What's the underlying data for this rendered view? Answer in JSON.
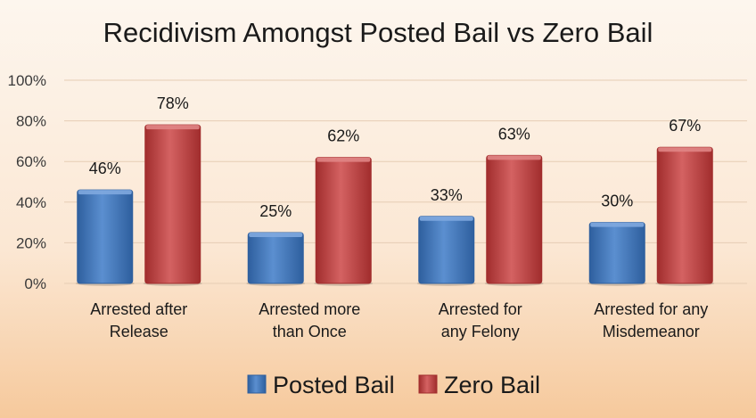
{
  "chart_data": {
    "type": "bar",
    "title": "Recidivism Amongst Posted Bail vs Zero Bail",
    "categories": [
      [
        "Arrested after",
        "Release"
      ],
      [
        "Arrested more",
        "than Once"
      ],
      [
        "Arrested for",
        "any Felony"
      ],
      [
        "Arrested for any",
        "Misdemeanor"
      ]
    ],
    "series": [
      {
        "name": "Posted Bail",
        "values": [
          46,
          25,
          33,
          30
        ],
        "labels": [
          "46%",
          "25%",
          "33%",
          "30%"
        ],
        "color": "#2e5f9e",
        "color_light": "#5b8fd0",
        "color_top": "#7fa9df"
      },
      {
        "name": "Zero Bail",
        "values": [
          78,
          62,
          63,
          67
        ],
        "labels": [
          "78%",
          "62%",
          "63%",
          "67%"
        ],
        "color": "#a12d2d",
        "color_light": "#d46262",
        "color_top": "#e08585"
      }
    ],
    "y_ticks": [
      "0%",
      "20%",
      "40%",
      "60%",
      "80%",
      "100%"
    ],
    "ylim": [
      0,
      100
    ],
    "grid": true,
    "legend_position": "bottom"
  }
}
